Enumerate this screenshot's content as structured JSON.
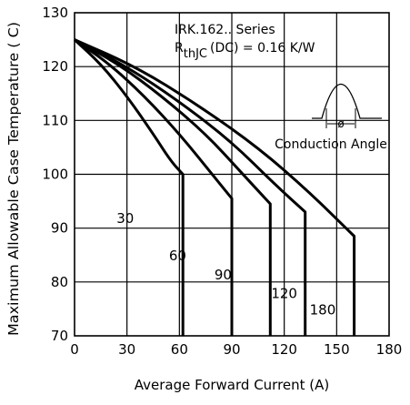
{
  "chart_data": {
    "type": "line",
    "title": "",
    "annotation_series": "IRK.162.. Series",
    "annotation_rth": {
      "r": "R",
      "sub": "thJC",
      "rest": "(DC) = 0.16 K/W"
    },
    "inset_label": "Conduction Angle",
    "inset_symbol": "ø",
    "xlabel": "Average Forward Current (A)",
    "ylabel": "Maximum Allowable Case Temperature ( C)",
    "xlim": [
      0,
      180
    ],
    "ylim": [
      70,
      130
    ],
    "xticks": [
      0,
      30,
      60,
      90,
      120,
      150,
      180
    ],
    "yticks": [
      70,
      80,
      90,
      100,
      110,
      120,
      130
    ],
    "grid": true,
    "series": [
      {
        "name": "30",
        "label_at": [
          29,
          91
        ],
        "points": [
          [
            0,
            125
          ],
          [
            15,
            120.5
          ],
          [
            30,
            114.5
          ],
          [
            45,
            107.5
          ],
          [
            55,
            102.5
          ],
          [
            62,
            100
          ],
          [
            62,
            70
          ]
        ]
      },
      {
        "name": "60",
        "label_at": [
          59,
          84
        ],
        "points": [
          [
            0,
            125
          ],
          [
            20,
            120.5
          ],
          [
            40,
            114.5
          ],
          [
            60,
            107.5
          ],
          [
            80,
            99.5
          ],
          [
            90,
            95.5
          ],
          [
            90,
            70
          ]
        ]
      },
      {
        "name": "90",
        "label_at": [
          85,
          80.5
        ],
        "points": [
          [
            0,
            125
          ],
          [
            25,
            120.5
          ],
          [
            50,
            114.5
          ],
          [
            75,
            107.5
          ],
          [
            95,
            100.5
          ],
          [
            112,
            94.5
          ],
          [
            112,
            70
          ]
        ]
      },
      {
        "name": "120",
        "label_at": [
          120,
          77
        ],
        "points": [
          [
            0,
            125
          ],
          [
            30,
            120
          ],
          [
            60,
            113.5
          ],
          [
            90,
            106
          ],
          [
            115,
            98
          ],
          [
            132,
            93
          ],
          [
            132,
            70
          ]
        ]
      },
      {
        "name": "180",
        "label_at": [
          142,
          74
        ],
        "points": [
          [
            0,
            125
          ],
          [
            35,
            120
          ],
          [
            70,
            113
          ],
          [
            105,
            105
          ],
          [
            135,
            96.5
          ],
          [
            160,
            88.5
          ],
          [
            160,
            70
          ]
        ]
      }
    ]
  }
}
